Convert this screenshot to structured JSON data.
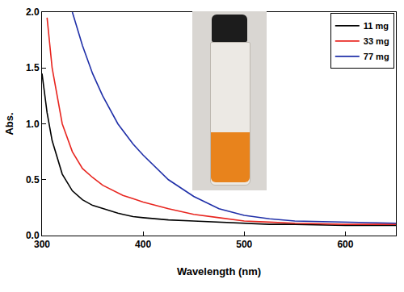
{
  "chart_data": {
    "type": "line",
    "x_label": "Wavelength (nm)",
    "y_label": "Abs.",
    "x": [
      300,
      305,
      310,
      320,
      330,
      340,
      350,
      360,
      375,
      380,
      390,
      400,
      425,
      450,
      475,
      500,
      525,
      550,
      600,
      650
    ],
    "series": [
      {
        "name": "11 mg",
        "color": "#000000",
        "values": [
          1.45,
          1.1,
          0.85,
          0.55,
          0.4,
          0.32,
          0.27,
          0.24,
          0.2,
          0.19,
          0.17,
          0.16,
          0.14,
          0.13,
          0.12,
          0.11,
          0.1,
          0.1,
          0.09,
          0.09
        ]
      },
      {
        "name": "33 mg",
        "color": "#e8251f",
        "values": [
          null,
          1.95,
          1.5,
          1.0,
          0.75,
          0.6,
          0.52,
          0.45,
          0.38,
          0.36,
          0.33,
          0.3,
          0.24,
          0.19,
          0.16,
          0.13,
          0.12,
          0.11,
          0.1,
          0.1
        ]
      },
      {
        "name": "77 mg",
        "color": "#1f2fa8",
        "values": [
          null,
          null,
          null,
          null,
          2.0,
          1.7,
          1.45,
          1.25,
          1.0,
          0.94,
          0.82,
          0.72,
          0.5,
          0.35,
          0.24,
          0.18,
          0.15,
          0.13,
          0.12,
          0.11
        ]
      }
    ],
    "xlim": [
      300,
      650
    ],
    "xticks": [
      300,
      400,
      500,
      600
    ],
    "ylim": [
      0,
      2
    ],
    "yticks": [
      {
        "value": 0,
        "label": "0.0"
      },
      {
        "value": 0.5,
        "label": "0.5"
      },
      {
        "value": 1,
        "label": "1.0"
      },
      {
        "value": 1.5,
        "label": "1.5"
      },
      {
        "value": 2,
        "label": "2.0"
      }
    ],
    "grid": false,
    "legend": "top right"
  }
}
